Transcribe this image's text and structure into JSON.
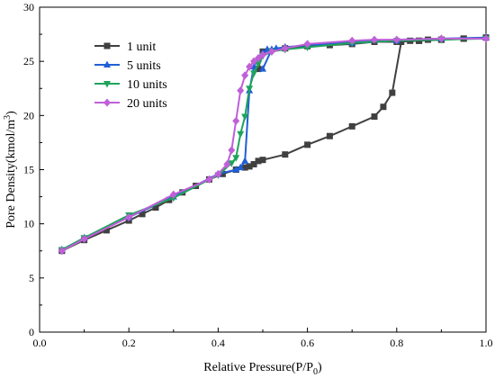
{
  "chart_data": {
    "type": "line",
    "title": "",
    "xlabel": "Relative Pressure(P/P",
    "xlabel_sub": "0",
    "xlabel_end": ")",
    "ylabel": "Pore Density(kmol/m",
    "ylabel_sup": "3",
    "ylabel_end": ")",
    "xlim": [
      0.0,
      1.0
    ],
    "ylim": [
      0,
      30
    ],
    "xticks": [
      "0.0",
      "0.2",
      "0.4",
      "0.6",
      "0.8",
      "1.0"
    ],
    "yticks": [
      "0",
      "5",
      "10",
      "15",
      "20",
      "25",
      "30"
    ],
    "xtick_values": [
      0.0,
      0.2,
      0.4,
      0.6,
      0.8,
      1.0
    ],
    "ytick_values": [
      0,
      5,
      10,
      15,
      20,
      25,
      30
    ],
    "grid": false,
    "legend_position": "top-left",
    "series": [
      {
        "name": "1 unit",
        "color": "#404040",
        "marker": "square",
        "x": [
          0.05,
          0.1,
          0.15,
          0.2,
          0.23,
          0.26,
          0.29,
          0.32,
          0.35,
          0.38,
          0.41,
          0.44,
          0.46,
          0.47,
          0.48,
          0.49,
          0.5,
          0.55,
          0.6,
          0.65,
          0.7,
          0.75,
          0.77,
          0.79,
          0.81,
          0.83,
          0.85,
          0.87,
          0.9,
          0.95,
          1.0,
          0.95,
          0.9,
          0.85,
          0.8,
          0.75,
          0.7,
          0.65,
          0.6,
          0.55,
          0.5,
          0.49
        ],
        "y": [
          7.5,
          8.5,
          9.4,
          10.3,
          10.9,
          11.5,
          12.2,
          12.9,
          13.5,
          14.1,
          14.6,
          15.0,
          15.2,
          15.3,
          15.5,
          15.8,
          15.9,
          16.4,
          17.3,
          18.1,
          19.0,
          19.9,
          20.8,
          22.1,
          26.8,
          26.9,
          26.9,
          27.0,
          27.0,
          27.1,
          27.2,
          27.1,
          27.0,
          26.9,
          26.8,
          26.8,
          26.6,
          26.5,
          26.4,
          26.2,
          25.9,
          24.3
        ]
      },
      {
        "name": "5 units",
        "color": "#1f5fd6",
        "marker": "triangle-up",
        "x": [
          0.05,
          0.1,
          0.2,
          0.3,
          0.4,
          0.44,
          0.45,
          0.46,
          0.47,
          0.48,
          0.49,
          0.5,
          0.51,
          0.53,
          0.55,
          0.6,
          0.7,
          0.8,
          0.9,
          1.0,
          0.9,
          0.8,
          0.7,
          0.6,
          0.55,
          0.52,
          0.5
        ],
        "y": [
          7.6,
          8.7,
          10.6,
          12.5,
          14.6,
          15.0,
          15.2,
          15.8,
          22.3,
          24.5,
          25.3,
          25.8,
          26.1,
          26.2,
          26.3,
          26.5,
          26.8,
          27.0,
          27.1,
          27.2,
          27.1,
          26.9,
          26.7,
          26.5,
          26.3,
          26.1,
          24.3
        ]
      },
      {
        "name": "10 units",
        "color": "#1fa35c",
        "marker": "triangle-down",
        "x": [
          0.05,
          0.1,
          0.2,
          0.3,
          0.4,
          0.43,
          0.44,
          0.45,
          0.46,
          0.47,
          0.48,
          0.49,
          0.5,
          0.52,
          0.55,
          0.6,
          0.7,
          0.8,
          0.9,
          1.0
        ],
        "y": [
          7.6,
          8.7,
          10.8,
          12.4,
          14.5,
          15.6,
          16.1,
          18.3,
          19.9,
          22.5,
          23.9,
          24.8,
          25.5,
          25.9,
          26.1,
          26.3,
          26.7,
          26.9,
          27.0,
          27.1
        ]
      },
      {
        "name": "20 units",
        "color": "#c060d8",
        "marker": "diamond",
        "x": [
          0.05,
          0.1,
          0.2,
          0.3,
          0.38,
          0.4,
          0.42,
          0.43,
          0.44,
          0.45,
          0.46,
          0.47,
          0.48,
          0.49,
          0.5,
          0.52,
          0.55,
          0.6,
          0.7,
          0.75,
          0.8,
          0.9,
          1.0
        ],
        "y": [
          7.5,
          8.6,
          10.6,
          12.7,
          14.1,
          14.6,
          15.5,
          16.8,
          19.5,
          22.3,
          23.7,
          24.5,
          25.0,
          25.3,
          25.6,
          25.9,
          26.2,
          26.6,
          26.9,
          27.0,
          27.0,
          27.1,
          27.1
        ]
      }
    ]
  }
}
